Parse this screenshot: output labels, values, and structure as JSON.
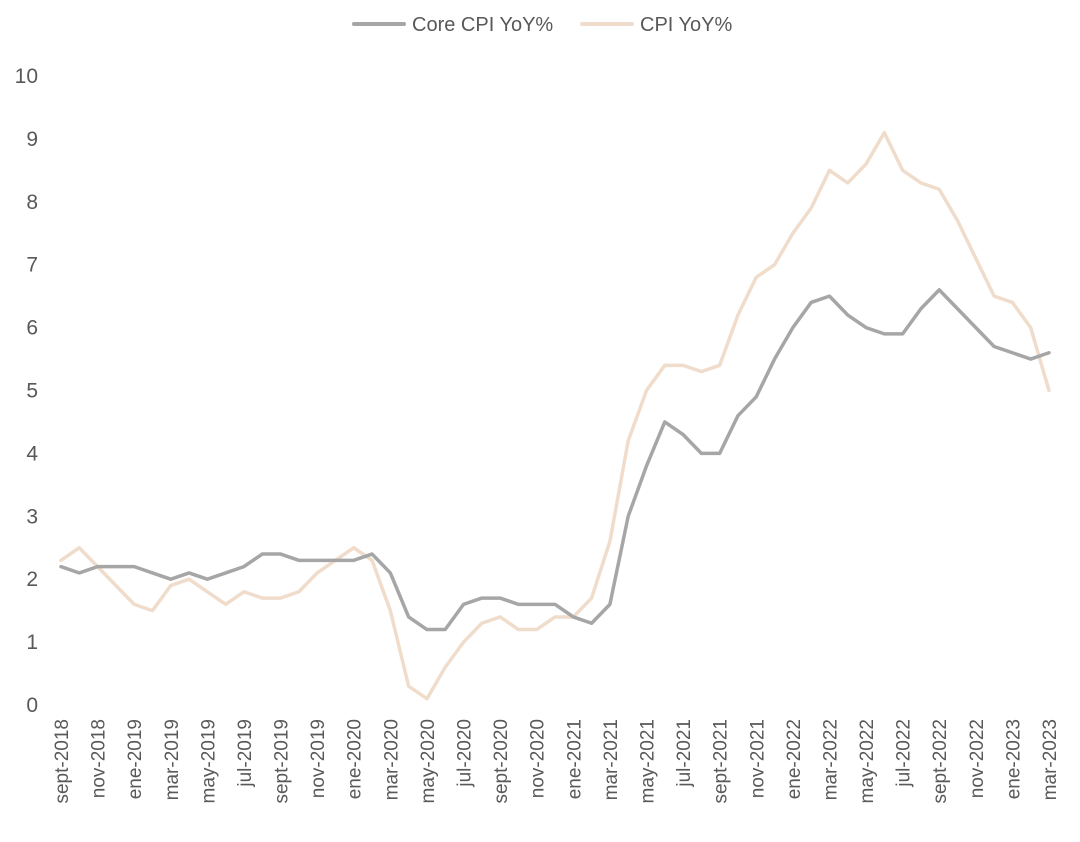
{
  "chart_data": {
    "type": "line",
    "title": "",
    "xlabel": "",
    "ylabel": "",
    "ylim": [
      0,
      10
    ],
    "yticks": [
      0,
      1,
      2,
      3,
      4,
      5,
      6,
      7,
      8,
      9,
      10
    ],
    "grid": false,
    "legend_position": "top-center",
    "x": [
      "sept-2018",
      "oct-2018",
      "nov-2018",
      "dic-2018",
      "ene-2019",
      "feb-2019",
      "mar-2019",
      "abr-2019",
      "may-2019",
      "jun-2019",
      "jul-2019",
      "ago-2019",
      "sept-2019",
      "oct-2019",
      "nov-2019",
      "dic-2019",
      "ene-2020",
      "feb-2020",
      "mar-2020",
      "abr-2020",
      "may-2020",
      "jun-2020",
      "jul-2020",
      "ago-2020",
      "sept-2020",
      "oct-2020",
      "nov-2020",
      "dic-2020",
      "ene-2021",
      "feb-2021",
      "mar-2021",
      "abr-2021",
      "may-2021",
      "jun-2021",
      "jul-2021",
      "ago-2021",
      "sept-2021",
      "oct-2021",
      "nov-2021",
      "dic-2021",
      "ene-2022",
      "feb-2022",
      "mar-2022",
      "abr-2022",
      "may-2022",
      "jun-2022",
      "jul-2022",
      "ago-2022",
      "sept-2022",
      "oct-2022",
      "nov-2022",
      "dic-2022",
      "ene-2023",
      "feb-2023",
      "mar-2023"
    ],
    "xtick_labels": [
      "sept-2018",
      "nov-2018",
      "ene-2019",
      "mar-2019",
      "may-2019",
      "jul-2019",
      "sept-2019",
      "nov-2019",
      "ene-2020",
      "mar-2020",
      "may-2020",
      "jul-2020",
      "sept-2020",
      "nov-2020",
      "ene-2021",
      "mar-2021",
      "may-2021",
      "jul-2021",
      "sept-2021",
      "nov-2021",
      "ene-2022",
      "mar-2022",
      "may-2022",
      "jul-2022",
      "sept-2022",
      "nov-2022",
      "ene-2023",
      "mar-2023"
    ],
    "series": [
      {
        "name": "Core CPI YoY%",
        "color": "#a6a6a6",
        "values": [
          2.2,
          2.1,
          2.2,
          2.2,
          2.2,
          2.1,
          2.0,
          2.1,
          2.0,
          2.1,
          2.2,
          2.4,
          2.4,
          2.3,
          2.3,
          2.3,
          2.3,
          2.4,
          2.1,
          1.4,
          1.2,
          1.2,
          1.6,
          1.7,
          1.7,
          1.6,
          1.6,
          1.6,
          1.4,
          1.3,
          1.6,
          3.0,
          3.8,
          4.5,
          4.3,
          4.0,
          4.0,
          4.6,
          4.9,
          5.5,
          6.0,
          6.4,
          6.5,
          6.2,
          6.0,
          5.9,
          5.9,
          6.3,
          6.6,
          6.3,
          6.0,
          5.7,
          5.6,
          5.5,
          5.6
        ]
      },
      {
        "name": "CPI YoY%",
        "color": "#f0dccb",
        "values": [
          2.3,
          2.5,
          2.2,
          1.9,
          1.6,
          1.5,
          1.9,
          2.0,
          1.8,
          1.6,
          1.8,
          1.7,
          1.7,
          1.8,
          2.1,
          2.3,
          2.5,
          2.3,
          1.5,
          0.3,
          0.1,
          0.6,
          1.0,
          1.3,
          1.4,
          1.2,
          1.2,
          1.4,
          1.4,
          1.7,
          2.6,
          4.2,
          5.0,
          5.4,
          5.4,
          5.3,
          5.4,
          6.2,
          6.8,
          7.0,
          7.5,
          7.9,
          8.5,
          8.3,
          8.6,
          9.1,
          8.5,
          8.3,
          8.2,
          7.7,
          7.1,
          6.5,
          6.4,
          6.0,
          5.0
        ]
      }
    ]
  }
}
